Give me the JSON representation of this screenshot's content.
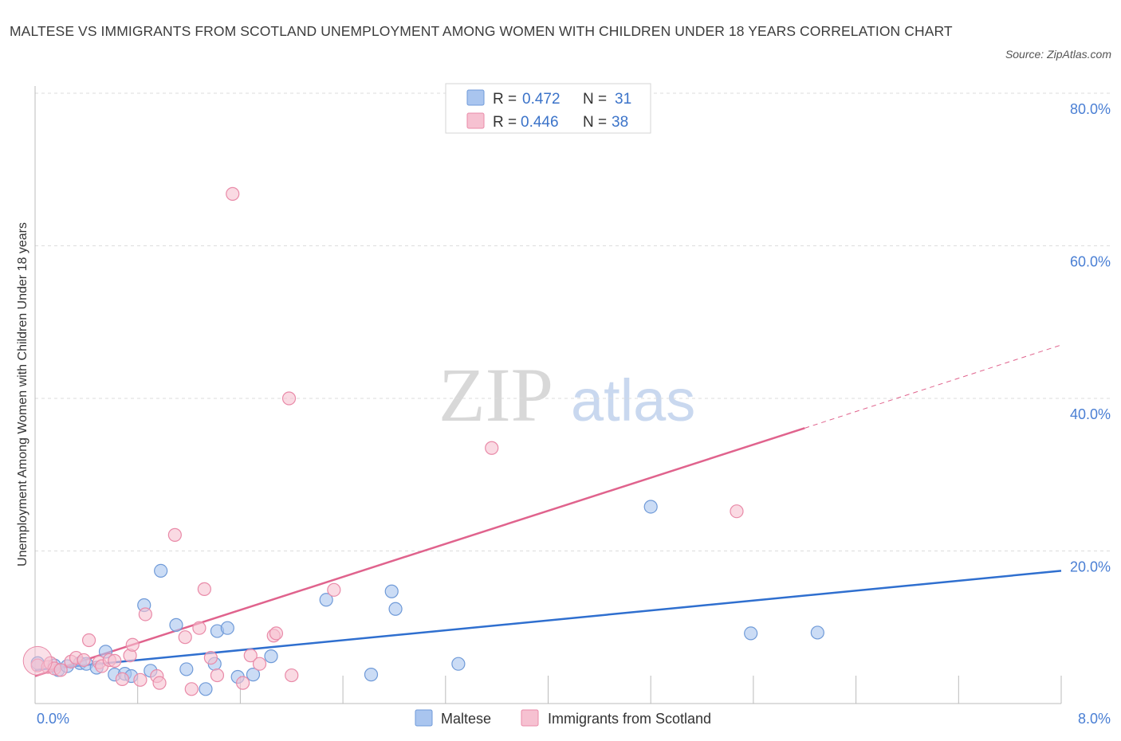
{
  "title": "MALTESE VS IMMIGRANTS FROM SCOTLAND UNEMPLOYMENT AMONG WOMEN WITH CHILDREN UNDER 18 YEARS CORRELATION CHART",
  "source": "Source: ZipAtlas.com",
  "watermark": {
    "zip": "ZIP",
    "atlas": "atlas"
  },
  "legend": {
    "rows": [
      {
        "r_label": "R =",
        "r_value": "0.472",
        "n_label": "N =",
        "n_value": "31",
        "color": "#a9c5ef",
        "stroke": "#6f9ad8"
      },
      {
        "r_label": "R =",
        "r_value": "0.446",
        "n_label": "N =",
        "n_value": "38",
        "color": "#f6c1d1",
        "stroke": "#e98aa8"
      }
    ]
  },
  "bottom_legend": [
    {
      "label": "Maltese",
      "color": "#a9c5ef",
      "stroke": "#6f9ad8"
    },
    {
      "label": "Immigrants from Scotland",
      "color": "#f6c1d1",
      "stroke": "#e98aa8"
    }
  ],
  "chart_data": {
    "type": "scatter",
    "title": "MALTESE VS IMMIGRANTS FROM SCOTLAND UNEMPLOYMENT AMONG WOMEN WITH CHILDREN UNDER 18 YEARS CORRELATION CHART",
    "xlabel": "",
    "ylabel": "Unemployment Among Women with Children Under 18 years",
    "xlim": [
      0,
      8
    ],
    "ylim": [
      0,
      80
    ],
    "x_tick_labels": [
      "0.0%",
      "8.0%"
    ],
    "y_ticks": [
      20,
      40,
      60,
      80
    ],
    "y_tick_labels": [
      "20.0%",
      "40.0%",
      "60.0%",
      "80.0%"
    ],
    "grid": "horizontal dashed",
    "legend_position": "top-center",
    "series": [
      {
        "name": "Maltese",
        "color": "#6f9ad8",
        "fill": "#a9c5ef",
        "line_color": "#2f6fcf",
        "trend": {
          "x": [
            0,
            8
          ],
          "y": [
            4.4,
            17.4
          ]
        },
        "points": [
          [
            0.02,
            5.3
          ],
          [
            0.15,
            5.0
          ],
          [
            0.18,
            4.4
          ],
          [
            0.25,
            4.9
          ],
          [
            0.35,
            5.3
          ],
          [
            0.4,
            5.2
          ],
          [
            0.48,
            4.7
          ],
          [
            0.55,
            6.8
          ],
          [
            0.62,
            3.8
          ],
          [
            0.7,
            3.9
          ],
          [
            0.75,
            3.6
          ],
          [
            0.85,
            12.9
          ],
          [
            0.9,
            4.3
          ],
          [
            0.98,
            17.4
          ],
          [
            1.1,
            10.3
          ],
          [
            1.18,
            4.5
          ],
          [
            1.33,
            1.9
          ],
          [
            1.4,
            5.2
          ],
          [
            1.42,
            9.5
          ],
          [
            1.5,
            9.9
          ],
          [
            1.58,
            3.5
          ],
          [
            1.7,
            3.8
          ],
          [
            1.84,
            6.2
          ],
          [
            2.27,
            13.6
          ],
          [
            2.62,
            3.8
          ],
          [
            2.78,
            14.7
          ],
          [
            2.81,
            12.4
          ],
          [
            3.3,
            5.2
          ],
          [
            4.8,
            25.8
          ],
          [
            5.58,
            9.2
          ],
          [
            6.1,
            9.3
          ]
        ]
      },
      {
        "name": "Immigrants from Scotland",
        "color": "#e98aa8",
        "fill": "#f6c1d1",
        "line_color": "#e0638d",
        "trend": {
          "x": [
            0,
            6.0
          ],
          "y": [
            3.6,
            36.1
          ]
        },
        "trend_dashed": {
          "x": [
            6.0,
            8
          ],
          "y": [
            36.1,
            47.0
          ]
        },
        "points": [
          [
            0.02,
            5.0
          ],
          [
            0.1,
            4.8
          ],
          [
            0.12,
            5.3
          ],
          [
            0.15,
            4.6
          ],
          [
            0.2,
            4.4
          ],
          [
            0.28,
            5.5
          ],
          [
            0.32,
            6.0
          ],
          [
            0.38,
            5.7
          ],
          [
            0.42,
            8.3
          ],
          [
            0.5,
            5.4
          ],
          [
            0.52,
            4.9
          ],
          [
            0.58,
            5.7
          ],
          [
            0.62,
            5.6
          ],
          [
            0.68,
            3.2
          ],
          [
            0.74,
            6.3
          ],
          [
            0.76,
            7.7
          ],
          [
            0.82,
            3.1
          ],
          [
            0.86,
            11.7
          ],
          [
            0.95,
            3.6
          ],
          [
            0.97,
            2.7
          ],
          [
            1.09,
            22.1
          ],
          [
            1.17,
            8.7
          ],
          [
            1.22,
            1.9
          ],
          [
            1.28,
            9.9
          ],
          [
            1.32,
            15.0
          ],
          [
            1.37,
            6.0
          ],
          [
            1.42,
            3.7
          ],
          [
            1.54,
            66.8
          ],
          [
            1.62,
            2.7
          ],
          [
            1.68,
            6.3
          ],
          [
            1.75,
            5.2
          ],
          [
            1.86,
            8.9
          ],
          [
            1.88,
            9.2
          ],
          [
            1.98,
            40.0
          ],
          [
            2.0,
            3.7
          ],
          [
            2.33,
            14.9
          ],
          [
            3.56,
            33.5
          ],
          [
            5.47,
            25.2
          ]
        ]
      }
    ]
  }
}
